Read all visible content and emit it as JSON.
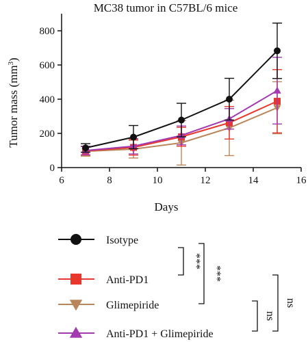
{
  "chart_data": {
    "type": "line",
    "title": "MC38 tumor in C57BL/6 mice",
    "xlabel": "Days",
    "ylabel_main": "Tumor mass (mm",
    "ylabel_sup": "3",
    "ylabel_close": ")",
    "xlim": [
      6,
      16
    ],
    "ylim": [
      0,
      900
    ],
    "xticks": [
      6,
      8,
      10,
      12,
      14,
      16
    ],
    "yticks": [
      0,
      200,
      400,
      600,
      800
    ],
    "grid": false,
    "x": [
      7,
      9,
      11,
      13,
      15
    ],
    "series": [
      {
        "name": "Isotype",
        "color": "#111111",
        "marker": "circle",
        "values": [
          115,
          178,
          278,
          400,
          683
        ],
        "errors": [
          25,
          68,
          98,
          122,
          162
        ]
      },
      {
        "name": "Anti-PD1",
        "color": "#e8372c",
        "marker": "square",
        "values": [
          98,
          118,
          180,
          262,
          388
        ],
        "errors": [
          25,
          45,
          55,
          95,
          185
        ]
      },
      {
        "name": "Glimepiride",
        "color": "#b8865a",
        "marker": "triangle-down",
        "values": [
          95,
          108,
          145,
          232,
          350
        ],
        "errors": [
          28,
          52,
          130,
          162,
          152
        ]
      },
      {
        "name": "Anti-PD1 + Glimepiride",
        "color": "#a23ab0",
        "marker": "triangle-up",
        "values": [
          100,
          125,
          188,
          285,
          450
        ],
        "errors": [
          25,
          45,
          55,
          60,
          195
        ]
      }
    ],
    "legend_position": "bottom",
    "significance": [
      "***",
      "***",
      "ns",
      "ns"
    ]
  }
}
